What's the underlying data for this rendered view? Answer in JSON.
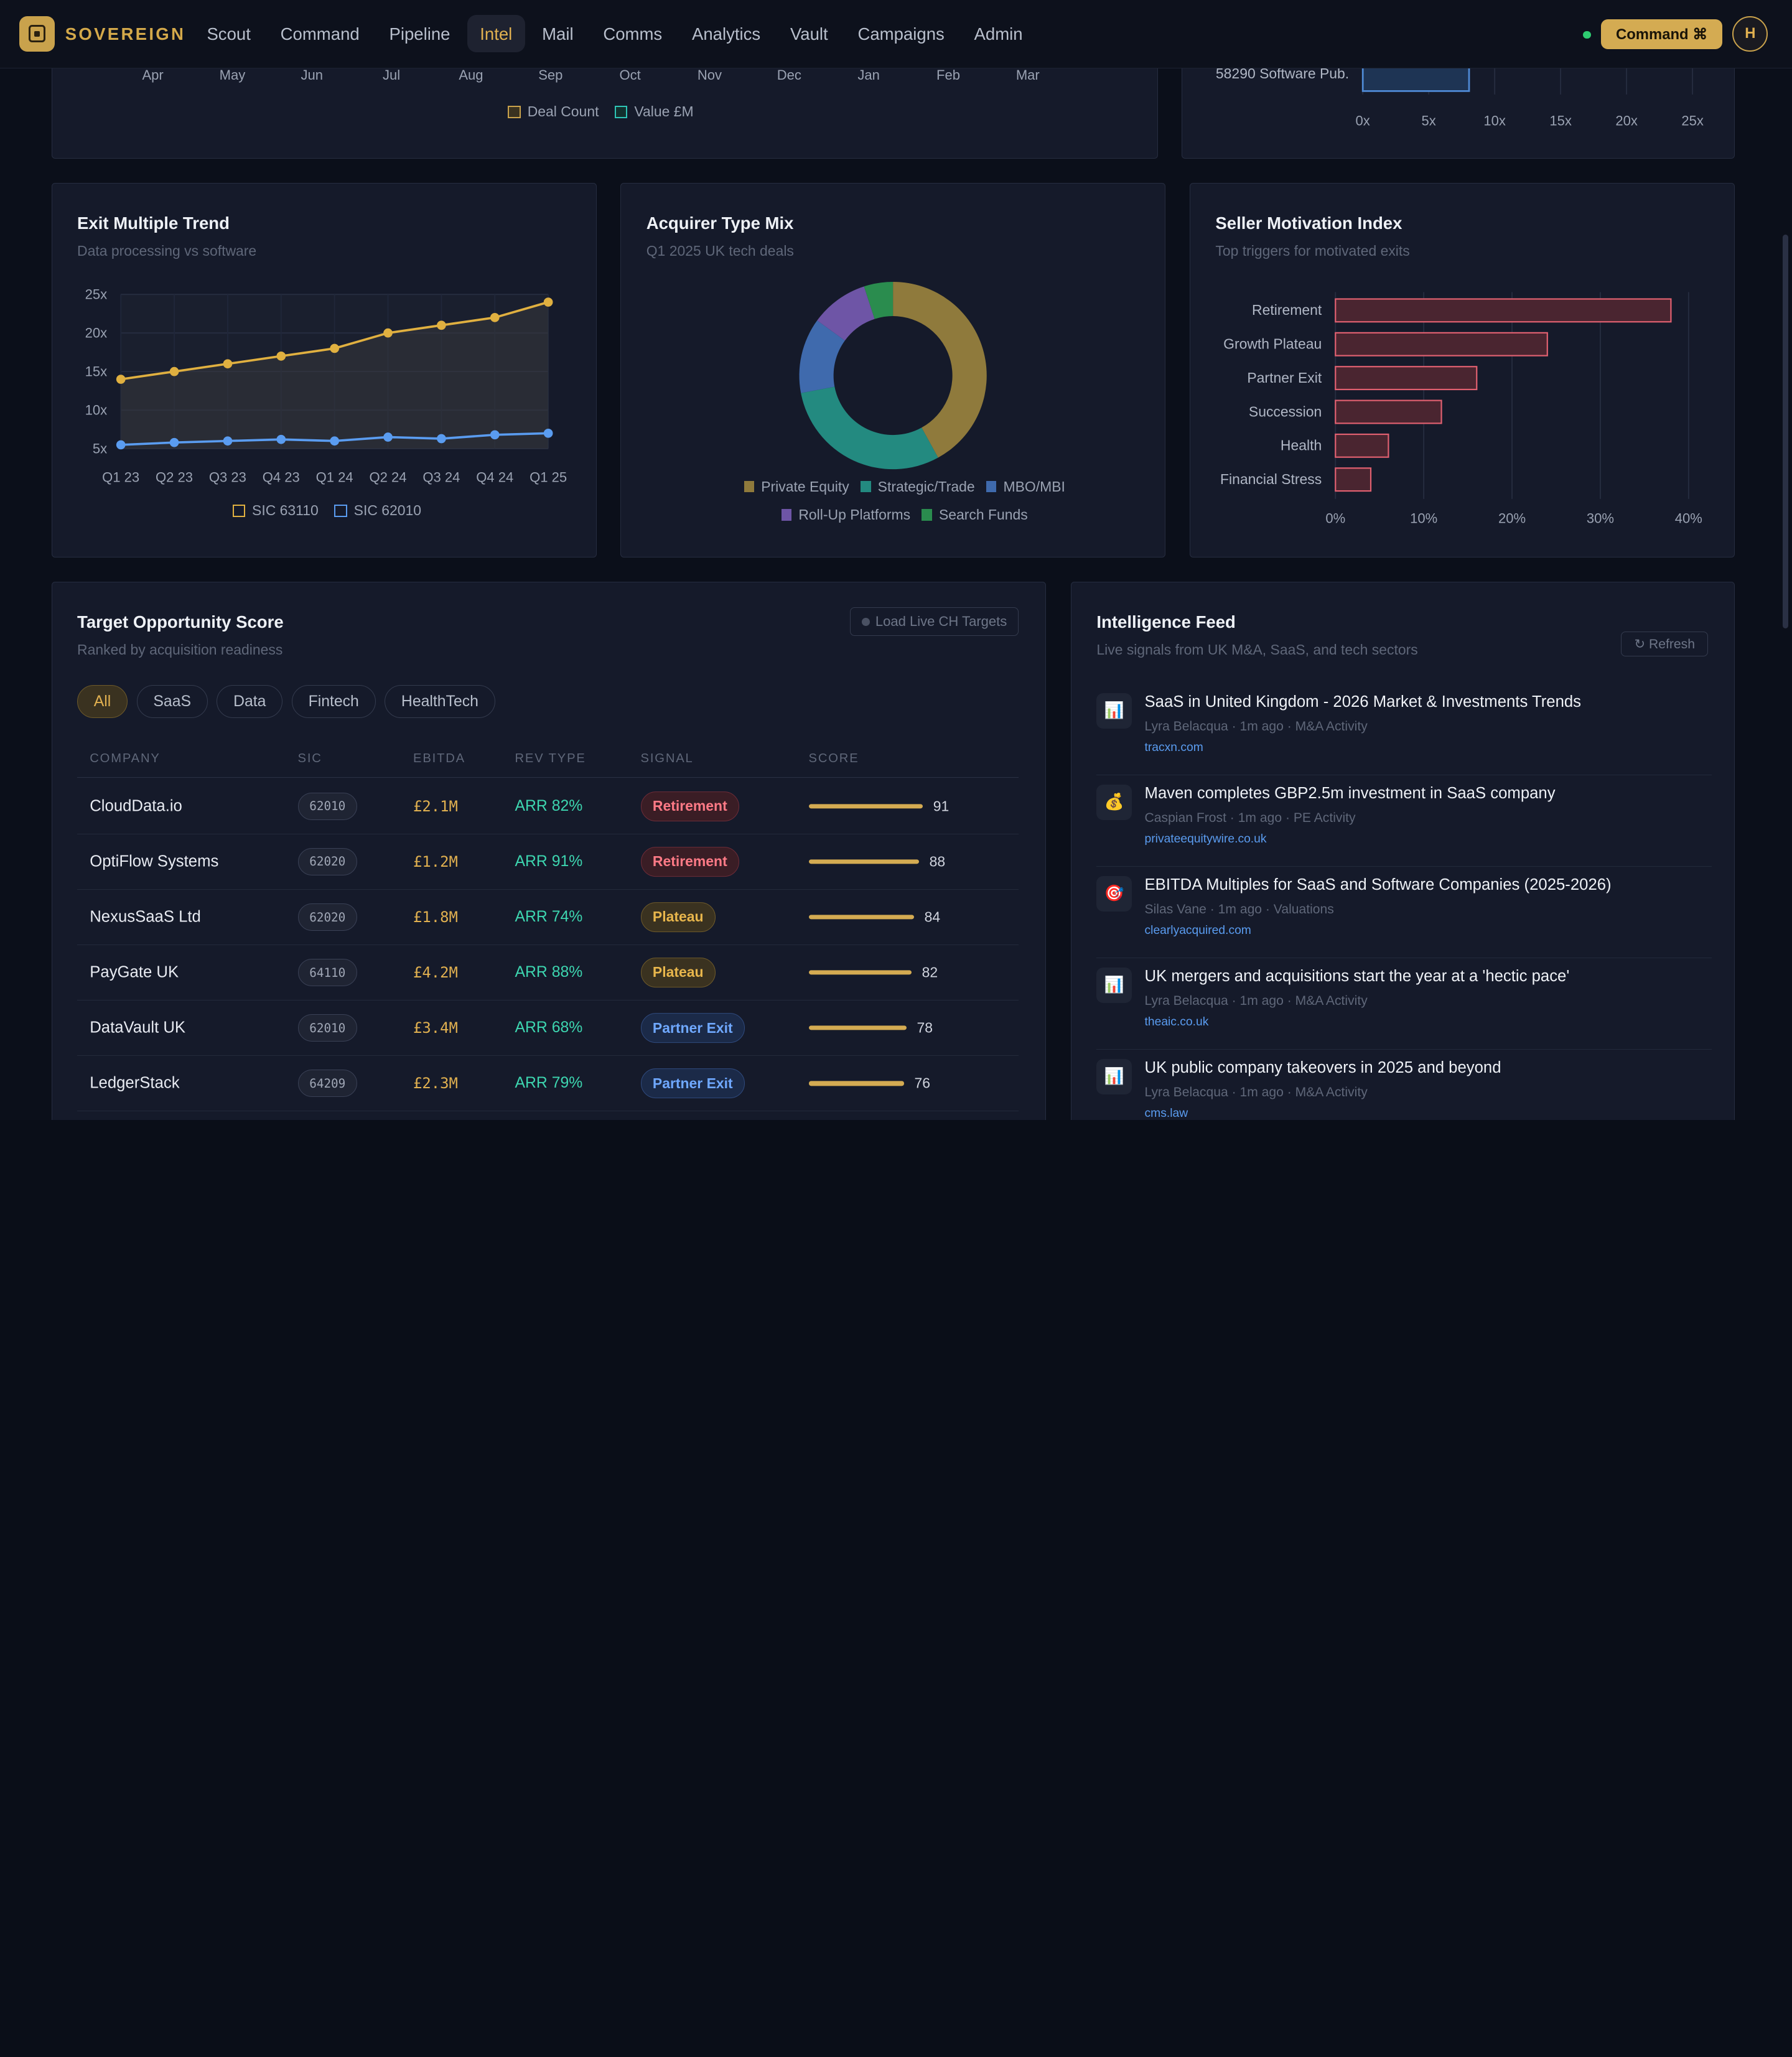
{
  "app": {
    "brand": "SOVEREIGN"
  },
  "nav": {
    "links": [
      "Scout",
      "Command",
      "Pipeline",
      "Intel",
      "Mail",
      "Comms",
      "Analytics",
      "Vault",
      "Campaigns",
      "Admin"
    ],
    "active": "Intel",
    "command_button": "Command ⌘",
    "avatar_initial": "H"
  },
  "colors": {
    "accent": "#d4ab52",
    "teal": "#2a9d8f",
    "blue": "#4a80c8",
    "purple": "#7c5cb8",
    "green": "#2f9e58",
    "red": "#e06070"
  },
  "top_left": {
    "months": [
      "Apr",
      "May",
      "Jun",
      "Jul",
      "Aug",
      "Sep",
      "Oct",
      "Nov",
      "Dec",
      "Jan",
      "Feb",
      "Mar"
    ],
    "legend": [
      "Deal Count",
      "Value £M"
    ]
  },
  "top_right": {
    "bar_label": "58290 Software Pub.",
    "x_ticks": [
      "0x",
      "5x",
      "10x",
      "15x",
      "20x",
      "25x"
    ]
  },
  "exit_multiple": {
    "title": "Exit Multiple Trend",
    "subtitle": "Data processing vs software",
    "legend": [
      "SIC 63110",
      "SIC 62010"
    ]
  },
  "acquirer_mix": {
    "title": "Acquirer Type Mix",
    "subtitle": "Q1 2025 UK tech deals",
    "legend": [
      "Private Equity",
      "Strategic/Trade",
      "MBO/MBI",
      "Roll-Up Platforms",
      "Search Funds"
    ]
  },
  "seller_motivation": {
    "title": "Seller Motivation Index",
    "subtitle": "Top triggers for motivated exits"
  },
  "chart_data": [
    {
      "type": "line",
      "x": [
        "Q1 23",
        "Q2 23",
        "Q3 23",
        "Q4 23",
        "Q1 24",
        "Q2 24",
        "Q3 24",
        "Q4 24",
        "Q1 25"
      ],
      "series": [
        {
          "name": "SIC 63110",
          "values": [
            14,
            15,
            16,
            17,
            18,
            20,
            21,
            22,
            24
          ]
        },
        {
          "name": "SIC 62010",
          "values": [
            5.5,
            5.8,
            6.0,
            6.2,
            6.0,
            6.5,
            6.3,
            6.8,
            7.0
          ]
        }
      ],
      "yticks": [
        "5x",
        "10x",
        "15x",
        "20x",
        "25x"
      ],
      "ylim": [
        5,
        25
      ]
    },
    {
      "type": "pie",
      "categories": [
        "Private Equity",
        "Strategic/Trade",
        "MBO/MBI",
        "Roll-Up Platforms",
        "Search Funds"
      ],
      "values": [
        42,
        30,
        13,
        10,
        5
      ]
    },
    {
      "type": "bar",
      "categories": [
        "Retirement",
        "Growth Plateau",
        "Partner Exit",
        "Succession",
        "Health",
        "Financial Stress"
      ],
      "values": [
        38,
        24,
        16,
        12,
        6,
        4
      ],
      "xticks": [
        "0%",
        "10%",
        "20%",
        "30%",
        "40%"
      ],
      "xlim": [
        0,
        40
      ]
    }
  ],
  "targets": {
    "title": "Target Opportunity Score",
    "subtitle": "Ranked by acquisition readiness",
    "load_button": "Load Live CH Targets",
    "filters": [
      "All",
      "SaaS",
      "Data",
      "Fintech",
      "HealthTech"
    ],
    "columns": [
      "COMPANY",
      "SIC",
      "EBITDA",
      "REV TYPE",
      "SIGNAL",
      "SCORE"
    ],
    "rows": [
      {
        "company": "CloudData.io",
        "sic": "62010",
        "ebitda": "£2.1M",
        "rev": "ARR 82%",
        "signal": "Retirement",
        "score": 91
      },
      {
        "company": "OptiFlow Systems",
        "sic": "62020",
        "ebitda": "£1.2M",
        "rev": "ARR 91%",
        "signal": "Retirement",
        "score": 88
      },
      {
        "company": "NexusSaaS Ltd",
        "sic": "62020",
        "ebitda": "£1.8M",
        "rev": "ARR 74%",
        "signal": "Plateau",
        "score": 84
      },
      {
        "company": "PayGate UK",
        "sic": "64110",
        "ebitda": "£4.2M",
        "rev": "ARR 88%",
        "signal": "Plateau",
        "score": 82
      },
      {
        "company": "DataVault UK",
        "sic": "62010",
        "ebitda": "£3.4M",
        "rev": "ARR 68%",
        "signal": "Partner Exit",
        "score": 78
      },
      {
        "company": "LedgerStack",
        "sic": "64209",
        "ebitda": "£2.3M",
        "rev": "ARR 79%",
        "signal": "Partner Exit",
        "score": 76
      }
    ]
  },
  "feed": {
    "title": "Intelligence Feed",
    "subtitle": "Live signals from UK M&A, SaaS, and tech sectors",
    "refresh": "↻ Refresh",
    "items": [
      {
        "icon": "chart-icon",
        "glyph": "📊",
        "title": "SaaS in United Kingdom - 2026 Market & Investments Trends",
        "meta": "Lyra Belacqua · 1m ago · M&A Activity",
        "source": "tracxn.com"
      },
      {
        "icon": "money-bag-icon",
        "glyph": "💰",
        "title": "Maven completes GBP2.5m investment in SaaS company",
        "meta": "Caspian Frost · 1m ago · PE Activity",
        "source": "privateequitywire.co.uk"
      },
      {
        "icon": "target-icon",
        "glyph": "🎯",
        "title": "EBITDA Multiples for SaaS and Software Companies (2025-2026)",
        "meta": "Silas Vane · 1m ago · Valuations",
        "source": "clearlyacquired.com"
      },
      {
        "icon": "chart-icon",
        "glyph": "📊",
        "title": "UK mergers and acquisitions start the year at a 'hectic pace'",
        "meta": "Lyra Belacqua · 1m ago · M&A Activity",
        "source": "theaic.co.uk"
      },
      {
        "icon": "chart-icon",
        "glyph": "📊",
        "title": "UK public company takeovers in 2025 and beyond",
        "meta": "Lyra Belacqua · 1m ago · M&A Activity",
        "source": "cms.law"
      }
    ]
  }
}
